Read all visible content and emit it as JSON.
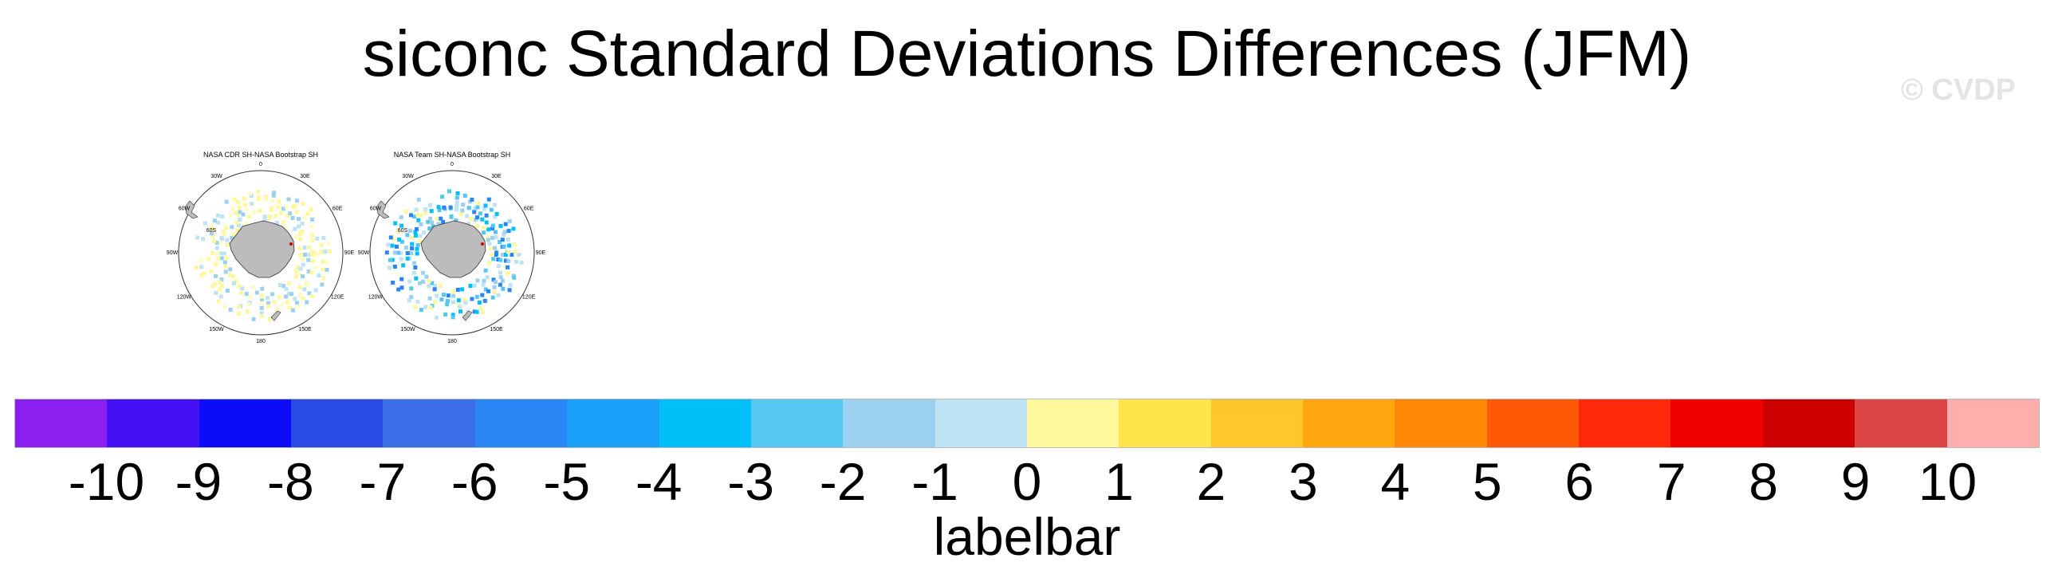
{
  "title": "siconc Standard Deviations Differences (JFM)",
  "credit": "© CVDP",
  "panels": [
    {
      "title": "NASA CDR SH-NASA Bootstrap SH",
      "lon_labels": [
        "0",
        "30E",
        "60E",
        "90E",
        "120E",
        "150E",
        "180",
        "150W",
        "120W",
        "90W",
        "60W",
        "30W"
      ],
      "lat_labels": [
        "60S"
      ],
      "pattern": "mostly-positive"
    },
    {
      "title": "NASA Team SH-NASA Bootstrap SH",
      "lon_labels": [
        "0",
        "30E",
        "60E",
        "90E",
        "120E",
        "150E",
        "180",
        "150W",
        "120W",
        "90W",
        "60W",
        "30W"
      ],
      "lat_labels": [
        "60S"
      ],
      "pattern": "mostly-negative"
    }
  ],
  "colorbar": {
    "colors": [
      "#8b1ff0",
      "#4411f5",
      "#0c0cf7",
      "#2a4ae6",
      "#3a6fe8",
      "#2a86f5",
      "#1aa0f8",
      "#00bff9",
      "#56c6f2",
      "#9bd1ee",
      "#bde3f4",
      "#fff79b",
      "#ffe44a",
      "#ffc72a",
      "#ffa50d",
      "#ff8806",
      "#ff5806",
      "#ff2a0a",
      "#ee0000",
      "#cc0000",
      "#dc4545",
      "#ffadad"
    ],
    "ticks": [
      "-10",
      "-9",
      "-8",
      "-7",
      "-6",
      "-5",
      "-4",
      "-3",
      "-2",
      "-1",
      "0",
      "1",
      "2",
      "3",
      "4",
      "5",
      "6",
      "7",
      "8",
      "9",
      "10"
    ],
    "label": "labelbar"
  }
}
